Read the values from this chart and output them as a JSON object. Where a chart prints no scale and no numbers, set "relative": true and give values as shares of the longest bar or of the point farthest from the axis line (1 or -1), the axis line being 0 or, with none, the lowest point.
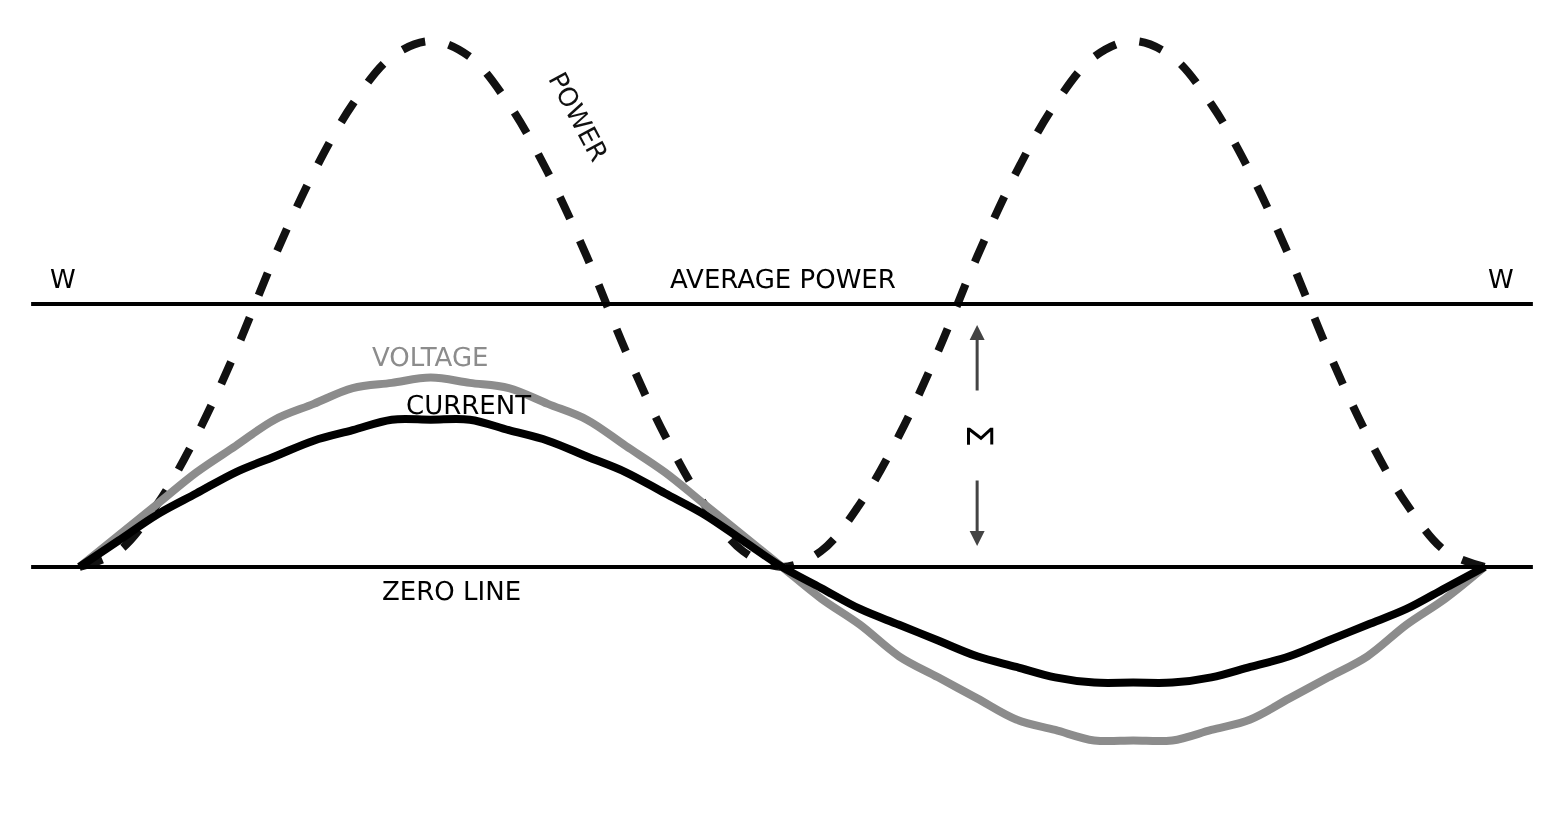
{
  "chart_data": {
    "type": "line",
    "relative": true,
    "categories": [
      null,
      null,
      null,
      null,
      null,
      null,
      null,
      null,
      null,
      null,
      null,
      null,
      null,
      null,
      null,
      null,
      null,
      null,
      null,
      null,
      null,
      null,
      null,
      null,
      null,
      null,
      null,
      null,
      null,
      null,
      null,
      null,
      null,
      null,
      null,
      null,
      null
    ],
    "series": [
      {
        "name": "POWER",
        "color": "#111111",
        "line_style": "dashed",
        "values": [
          0,
          0.03,
          0.12,
          0.25,
          0.41,
          0.59,
          0.75,
          0.88,
          0.97,
          1,
          0.97,
          0.88,
          0.75,
          0.59,
          0.41,
          0.25,
          0.12,
          0.03,
          0,
          0.03,
          0.12,
          0.25,
          0.41,
          0.59,
          0.75,
          0.88,
          0.97,
          1,
          0.97,
          0.88,
          0.75,
          0.59,
          0.41,
          0.25,
          0.12,
          0.03,
          0
        ]
      },
      {
        "name": "VOLTAGE",
        "color": "#8c8c8c",
        "line_style": "solid",
        "values": [
          0,
          0.06,
          0.12,
          0.18,
          0.23,
          0.28,
          0.31,
          0.34,
          0.35,
          0.36,
          0.35,
          0.34,
          0.31,
          0.28,
          0.23,
          0.18,
          0.12,
          0.06,
          0,
          -0.06,
          -0.11,
          -0.17,
          -0.21,
          -0.25,
          -0.29,
          -0.31,
          -0.33,
          -0.33,
          -0.33,
          -0.31,
          -0.29,
          -0.25,
          -0.21,
          -0.17,
          -0.11,
          -0.06,
          0
        ]
      },
      {
        "name": "CURRENT",
        "color": "#000000",
        "line_style": "solid",
        "values": [
          0,
          0.05,
          0.1,
          0.14,
          0.18,
          0.21,
          0.24,
          0.26,
          0.28,
          0.28,
          0.28,
          0.26,
          0.24,
          0.21,
          0.18,
          0.14,
          0.1,
          0.05,
          0,
          -0.04,
          -0.08,
          -0.11,
          -0.14,
          -0.17,
          -0.19,
          -0.21,
          -0.22,
          -0.22,
          -0.22,
          -0.21,
          -0.19,
          -0.17,
          -0.14,
          -0.11,
          -0.08,
          -0.04,
          0
        ]
      }
    ],
    "ref_lines": [
      {
        "axis": "y",
        "value": 0.5,
        "label": "AVERAGE POWER",
        "color": "#000000"
      },
      {
        "axis": "y",
        "value": 0,
        "label": "ZERO LINE",
        "color": "#000000"
      }
    ],
    "annotations": [
      "W",
      "W",
      "Σ"
    ],
    "legend": false
  }
}
